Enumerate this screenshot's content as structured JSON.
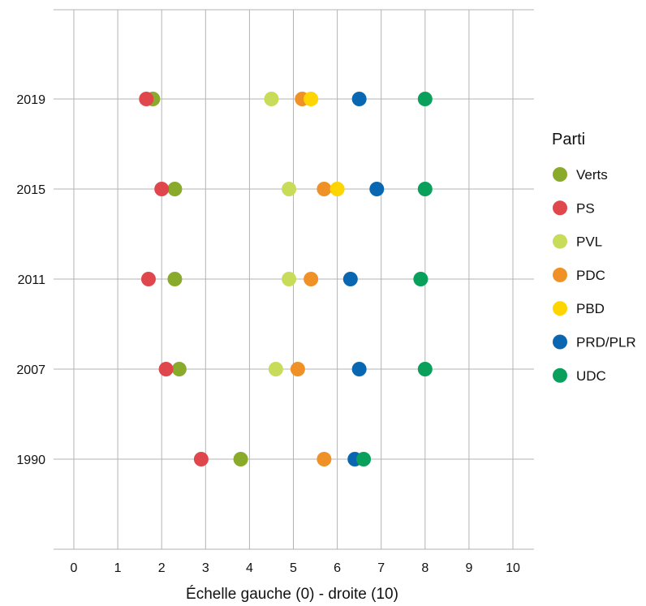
{
  "chart_data": {
    "type": "scatter",
    "title": "",
    "xlabel": "Échelle gauche (0) - droite (10)",
    "ylabel": "",
    "xlim": [
      0,
      10
    ],
    "x_ticks": [
      "0",
      "1",
      "2",
      "3",
      "4",
      "5",
      "6",
      "7",
      "8",
      "9",
      "10"
    ],
    "categories": [
      "2019",
      "2015",
      "2011",
      "2007",
      "1990"
    ],
    "grid": true,
    "legend": {
      "title": "Parti",
      "placement": "right"
    },
    "series": [
      {
        "name": "Verts",
        "color": "#8aaa2c",
        "values": [
          1.8,
          2.3,
          2.3,
          2.4,
          3.8
        ]
      },
      {
        "name": "PS",
        "color": "#e0474c",
        "values": [
          1.65,
          2.0,
          1.7,
          2.1,
          2.9
        ]
      },
      {
        "name": "PVL",
        "color": "#c8dc5a",
        "values": [
          4.5,
          4.9,
          4.9,
          4.6,
          null
        ]
      },
      {
        "name": "PDC",
        "color": "#ef9126",
        "values": [
          5.2,
          5.7,
          5.4,
          5.1,
          5.7
        ]
      },
      {
        "name": "PBD",
        "color": "#fed500",
        "values": [
          5.4,
          6.0,
          null,
          null,
          null
        ]
      },
      {
        "name": "PRD/PLR",
        "color": "#0967b1",
        "values": [
          6.5,
          6.9,
          6.3,
          6.5,
          6.4
        ]
      },
      {
        "name": "UDC",
        "color": "#08a05a",
        "values": [
          8.0,
          8.0,
          7.9,
          8.0,
          6.6
        ]
      }
    ]
  }
}
